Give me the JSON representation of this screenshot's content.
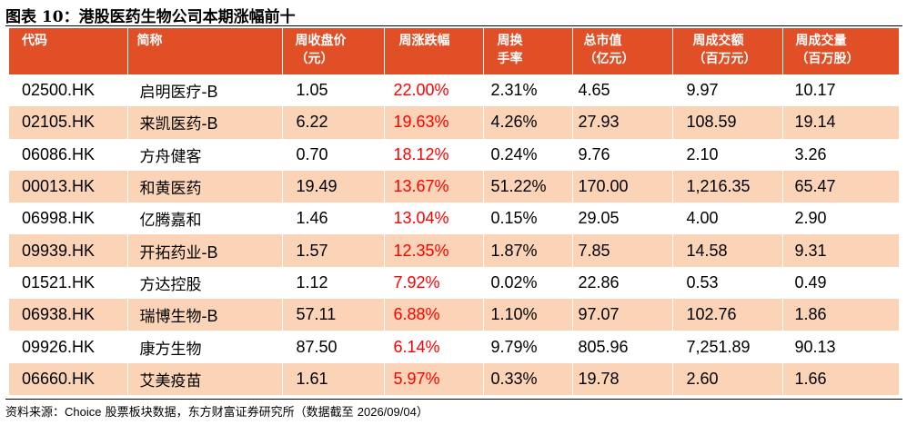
{
  "title": "图表 10：港股医药生物公司本期涨幅前十",
  "headers": [
    {
      "line1": "代码",
      "line2": ""
    },
    {
      "line1": "简称",
      "line2": ""
    },
    {
      "line1": "周收盘价",
      "line2": "（元）"
    },
    {
      "line1": "周涨跌幅",
      "line2": ""
    },
    {
      "line1": "周换",
      "line2": "手率"
    },
    {
      "line1": "总市值",
      "line2": "（亿元）"
    },
    {
      "line1": "周成交额",
      "line2": "（百万元）"
    },
    {
      "line1": "周成交量",
      "line2": "（百万股）"
    }
  ],
  "rows": [
    {
      "code": "02500.HK",
      "name_cn": "启明医疗",
      "name_suffix": "-B",
      "close": "1.05",
      "change": "22.00%",
      "turnover": "2.31%",
      "mcap": "4.65",
      "amount": "9.97",
      "volume": "10.17"
    },
    {
      "code": "02105.HK",
      "name_cn": "来凯医药",
      "name_suffix": "-B",
      "close": "6.22",
      "change": "19.63%",
      "turnover": "4.26%",
      "mcap": "27.93",
      "amount": "108.59",
      "volume": "19.14"
    },
    {
      "code": "06086.HK",
      "name_cn": "方舟健客",
      "name_suffix": "",
      "close": "0.70",
      "change": "18.12%",
      "turnover": "0.24%",
      "mcap": "9.76",
      "amount": "2.10",
      "volume": "3.26"
    },
    {
      "code": "00013.HK",
      "name_cn": "和黄医药",
      "name_suffix": "",
      "close": "19.49",
      "change": "13.67%",
      "turnover": "51.22%",
      "mcap": "170.00",
      "amount": "1,216.35",
      "volume": "65.47"
    },
    {
      "code": "06998.HK",
      "name_cn": "亿腾嘉和",
      "name_suffix": "",
      "close": "1.46",
      "change": "13.04%",
      "turnover": "0.15%",
      "mcap": "29.05",
      "amount": "4.00",
      "volume": "2.90"
    },
    {
      "code": "09939.HK",
      "name_cn": "开拓药业",
      "name_suffix": "-B",
      "close": "1.57",
      "change": "12.35%",
      "turnover": "1.87%",
      "mcap": "7.85",
      "amount": "14.58",
      "volume": "9.31"
    },
    {
      "code": "01521.HK",
      "name_cn": "方达控股",
      "name_suffix": "",
      "close": "1.12",
      "change": "7.92%",
      "turnover": "0.02%",
      "mcap": "22.86",
      "amount": "0.53",
      "volume": "0.49"
    },
    {
      "code": "06938.HK",
      "name_cn": "瑞博生物",
      "name_suffix": "-B",
      "close": "57.11",
      "change": "6.88%",
      "turnover": "1.10%",
      "mcap": "97.07",
      "amount": "102.76",
      "volume": "1.86"
    },
    {
      "code": "09926.HK",
      "name_cn": "康方生物",
      "name_suffix": "",
      "close": "87.50",
      "change": "6.14%",
      "turnover": "9.79%",
      "mcap": "805.96",
      "amount": "7,251.89",
      "volume": "90.13"
    },
    {
      "code": "06660.HK",
      "name_cn": "艾美疫苗",
      "name_suffix": "",
      "close": "1.61",
      "change": "5.97%",
      "turnover": "0.33%",
      "mcap": "19.78",
      "amount": "2.60",
      "volume": "1.66"
    }
  ],
  "source": {
    "prefix": "资料来源：",
    "latin": "Choice",
    "middle": " 股票板块数据，东方财富证券研究所（数据截至 ",
    "date": "2026/09/04",
    "suffix": "）"
  },
  "colors": {
    "header_bg": "#e14f26",
    "stripe_bg": "#fbd4b7",
    "positive_change": "#ff0000"
  }
}
